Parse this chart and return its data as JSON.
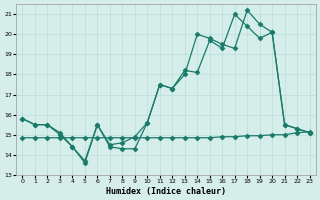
{
  "xlabel": "Humidex (Indice chaleur)",
  "xlim": [
    -0.5,
    23.5
  ],
  "ylim": [
    13,
    21.5
  ],
  "yticks": [
    13,
    14,
    15,
    16,
    17,
    18,
    19,
    20,
    21
  ],
  "xticks": [
    0,
    1,
    2,
    3,
    4,
    5,
    6,
    7,
    8,
    9,
    10,
    11,
    12,
    13,
    14,
    15,
    16,
    17,
    18,
    19,
    20,
    21,
    22,
    23
  ],
  "background_color": "#d6eeea",
  "grid_color": "#b8ddd8",
  "line_color": "#1a7a6a",
  "line1_x": [
    0,
    1,
    2,
    3,
    4,
    5,
    6,
    7,
    8,
    9,
    10,
    11,
    12,
    13,
    14,
    15,
    16,
    17,
    18,
    19,
    20,
    21,
    22,
    23
  ],
  "line1_y": [
    15.8,
    15.5,
    15.5,
    15.0,
    14.4,
    13.6,
    15.5,
    14.4,
    14.3,
    14.3,
    15.6,
    17.5,
    17.3,
    18.0,
    20.0,
    19.8,
    19.5,
    19.3,
    21.2,
    20.5,
    20.1,
    15.5,
    15.3,
    15.1
  ],
  "line2_x": [
    0,
    1,
    2,
    3,
    4,
    5,
    6,
    7,
    8,
    9,
    10,
    11,
    12,
    13,
    14,
    15,
    16,
    17,
    18,
    19,
    20,
    21,
    22,
    23
  ],
  "line2_y": [
    15.8,
    15.5,
    15.5,
    15.1,
    14.4,
    13.7,
    15.5,
    14.5,
    14.6,
    14.9,
    15.6,
    17.5,
    17.3,
    18.2,
    18.1,
    19.7,
    19.3,
    21.0,
    20.4,
    19.8,
    20.1,
    15.5,
    15.3,
    15.1
  ],
  "line3_x": [
    0,
    1,
    2,
    3,
    4,
    5,
    6,
    7,
    8,
    9,
    10,
    11,
    12,
    13,
    14,
    15,
    16,
    17,
    18,
    19,
    20,
    21,
    22,
    23
  ],
  "line3_y": [
    14.85,
    14.85,
    14.85,
    14.85,
    14.85,
    14.85,
    14.85,
    14.85,
    14.85,
    14.85,
    14.85,
    14.85,
    14.85,
    14.85,
    14.85,
    14.85,
    14.9,
    14.9,
    14.95,
    14.95,
    15.0,
    15.0,
    15.1,
    15.15
  ]
}
